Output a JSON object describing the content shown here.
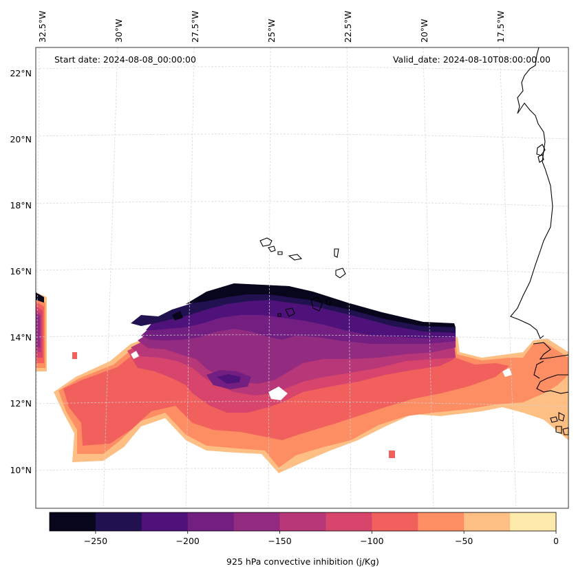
{
  "map": {
    "start_date": "Start date: 2024-08-08_00:00:00",
    "valid_date": "Valid_date: 2024-08-10T08:00:00.00",
    "lon_labels": [
      "32.5°W",
      "30°W",
      "27.5°W",
      "25°W",
      "22.5°W",
      "20°W",
      "17.5°W"
    ],
    "lat_labels": [
      "22°N",
      "20°N",
      "18°N",
      "16°N",
      "14°N",
      "12°N",
      "10°N"
    ],
    "land_color": "#ffffff",
    "coastline_color": "#000000",
    "gridline_color": "#d3d3d3"
  },
  "colorbar": {
    "label": "925 hPa convective inhibition (j/Kg)",
    "tick_labels": [
      "−250",
      "−200",
      "−150",
      "−100",
      "−50",
      "0"
    ],
    "tick_values": [
      -250,
      -200,
      -150,
      -100,
      -50,
      0
    ],
    "range": [
      -275,
      0
    ],
    "levels": [
      -275,
      -250,
      -225,
      -200,
      -175,
      -150,
      -125,
      -100,
      -75,
      -50,
      -25,
      0
    ],
    "colors": [
      "#07061c",
      "#221150",
      "#4f127b",
      "#721f81",
      "#932b80",
      "#b73779",
      "#d8456c",
      "#f1605d",
      "#fd8e64",
      "#febf84",
      "#fde9a9"
    ]
  }
}
